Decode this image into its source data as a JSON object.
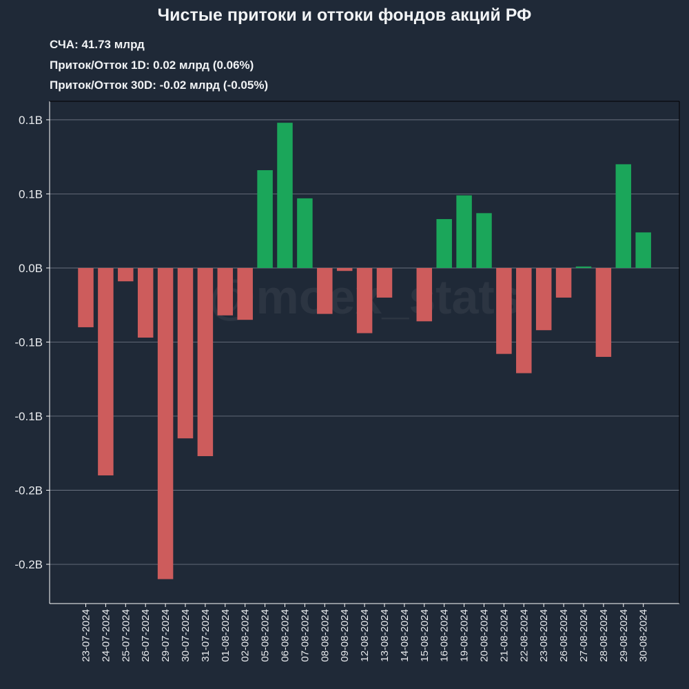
{
  "header": {
    "title": "Чистые притоки и оттоки фондов акций РФ",
    "aum": "СЧА: 41.73 млрд",
    "flow_1d": "Приток/Отток 1D: 0.02 млрд (0.06%)",
    "flow_30d": "Приток/Отток 30D: -0.02 млрд (-0.05%)"
  },
  "watermark": "@moex_stats",
  "colors": {
    "background": "#1f2937",
    "positive": "#1ba65a",
    "negative": "#cd5c5c",
    "grid": "#6b7280",
    "text": "#e8eaed"
  },
  "chart_data": {
    "type": "bar",
    "title": "Чистые притоки и оттоки фондов акций РФ",
    "xlabel": "",
    "ylabel": "",
    "grid": true,
    "ylim": [
      -0.2265,
      0.1125
    ],
    "y_ticks": [
      {
        "value": 0.1,
        "label": "0.1B"
      },
      {
        "value": 0.05,
        "label": "0.1B"
      },
      {
        "value": 0.0,
        "label": "0.0B"
      },
      {
        "value": -0.05,
        "label": "-0.1B"
      },
      {
        "value": -0.1,
        "label": "-0.1B"
      },
      {
        "value": -0.15,
        "label": "-0.2B"
      },
      {
        "value": -0.2,
        "label": "-0.2B"
      }
    ],
    "categories": [
      "23-07-2024",
      "24-07-2024",
      "25-07-2024",
      "26-07-2024",
      "29-07-2024",
      "30-07-2024",
      "31-07-2024",
      "01-08-2024",
      "02-08-2024",
      "05-08-2024",
      "06-08-2024",
      "07-08-2024",
      "08-08-2024",
      "09-08-2024",
      "12-08-2024",
      "13-08-2024",
      "14-08-2024",
      "15-08-2024",
      "16-08-2024",
      "19-08-2024",
      "20-08-2024",
      "21-08-2024",
      "22-08-2024",
      "23-08-2024",
      "26-08-2024",
      "27-08-2024",
      "28-08-2024",
      "29-08-2024",
      "30-08-2024"
    ],
    "values": [
      -0.04,
      -0.14,
      -0.009,
      -0.047,
      -0.21,
      -0.115,
      -0.127,
      -0.032,
      -0.035,
      0.066,
      0.098,
      0.047,
      -0.031,
      -0.002,
      -0.044,
      -0.02,
      0.0,
      -0.036,
      0.033,
      0.049,
      0.037,
      -0.058,
      -0.071,
      -0.042,
      -0.02,
      0.001,
      -0.06,
      0.07,
      0.024
    ]
  }
}
